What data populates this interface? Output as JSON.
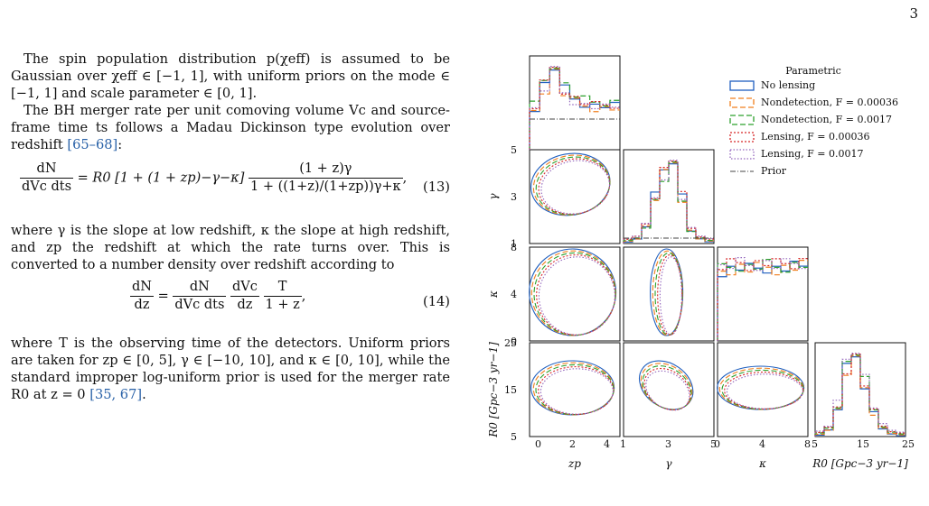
{
  "page_number": "3",
  "para1": "The spin population distribution p(χeff) is assumed to be Gaussian over χeff ∈ [−1, 1], with uniform priors on the mode ∈ [−1, 1] and scale parameter ∈ [0, 1].",
  "para2": "The BH merger rate per unit comoving volume Vc and source-frame time ts follows a Madau Dickinson type evolution over redshift",
  "para2_cite": "[65–68]",
  "eq13": {
    "lhs_num": "dN",
    "lhs_den": "dVc dts",
    "middle": "= R0 [1 + (1 + zp)−γ−κ]",
    "rhs_num": "(1 + z)γ",
    "rhs_den": "1 + ((1+z)/(1+zp))γ+κ",
    "number": "(13)"
  },
  "para3": "where γ is the slope at low redshift, κ the slope at high redshift, and zp the redshift at which the rate turns over. This is converted to a number density over redshift according to",
  "eq14": {
    "lhs_num": "dN",
    "lhs_den": "dz",
    "f1_num": "dN",
    "f1_den": "dVc dts",
    "f2_num": "dVc",
    "f2_den": "dz",
    "f3_num": "T",
    "f3_den": "1 + z",
    "number": "(14)"
  },
  "para4": "where T is the observing time of the detectors. Uniform priors are taken for zp ∈ [0, 5], γ ∈ [−10, 10], and κ ∈ [0, 10], while the standard improper log-uniform prior is used for the merger rate R0 at z = 0",
  "para4_cite": "[35, 67]",
  "legend": {
    "title": "Parametric",
    "entries": [
      "No lensing",
      "Nondetection, F = 0.00036",
      "Nondetection, F = 0.0017",
      "Lensing, F = 0.00036",
      "Lensing, F = 0.0017",
      "Prior"
    ]
  },
  "colors": {
    "no_lensing": "#1f5fbf",
    "nondet_1": "#f07f1e",
    "nondet_2": "#2ca02c",
    "lens_1": "#d62728",
    "lens_2": "#9467bd",
    "prior": "#444444"
  },
  "chart_data": {
    "type": "corner",
    "parameters": [
      "zp",
      "γ",
      "κ",
      "R0 [Gpc−3 yr−1]"
    ],
    "axis_labels": {
      "x": [
        "zp",
        "γ",
        "κ",
        "R0 [Gpc−3 yr−1]"
      ],
      "y": [
        "γ",
        "κ",
        "R0 [Gpc−3 yr−1]"
      ]
    },
    "ranges": {
      "zp": [
        0,
        5
      ],
      "gamma": [
        1,
        6
      ],
      "kappa": [
        0,
        10
      ],
      "R0": [
        5,
        30
      ]
    },
    "ticks": {
      "zp": [
        "0",
        "2",
        "4"
      ],
      "gamma": [
        "1",
        "3",
        "5"
      ],
      "kappa": [
        "0",
        "4",
        "8"
      ],
      "R0": [
        "5",
        "15",
        "25"
      ]
    },
    "marginal_histograms": {
      "zp_bin_edges": [
        0.5,
        1.0,
        1.5,
        2.0,
        2.5,
        3.0,
        3.5,
        4.0,
        4.5,
        5.0
      ],
      "zp": [
        0.9,
        1.4,
        1.8,
        1.3,
        1.1,
        1.0,
        0.95,
        0.95,
        0.95
      ],
      "gamma_bin_edges": [
        1.0,
        1.5,
        2.0,
        2.5,
        3.0,
        3.5,
        4.0,
        4.5,
        5.0,
        5.5,
        6.0
      ],
      "gamma": [
        0.02,
        0.05,
        0.2,
        0.55,
        0.85,
        1.0,
        0.55,
        0.15,
        0.05,
        0.02
      ],
      "kappa_bin_edges": [
        0,
        1,
        2,
        3,
        4,
        5,
        6,
        7,
        8,
        9,
        10
      ],
      "kappa": [
        0.7,
        0.72,
        0.74,
        0.72,
        0.73,
        0.74,
        0.72,
        0.73,
        0.74,
        0.75
      ],
      "R0_bin_edges": [
        5,
        7.5,
        10,
        12.5,
        15,
        17.5,
        20,
        22.5,
        25,
        27.5,
        30
      ],
      "R0": [
        0.02,
        0.08,
        0.35,
        0.85,
        1.0,
        0.65,
        0.3,
        0.1,
        0.03,
        0.01
      ]
    },
    "legend_placement": "top-right"
  }
}
